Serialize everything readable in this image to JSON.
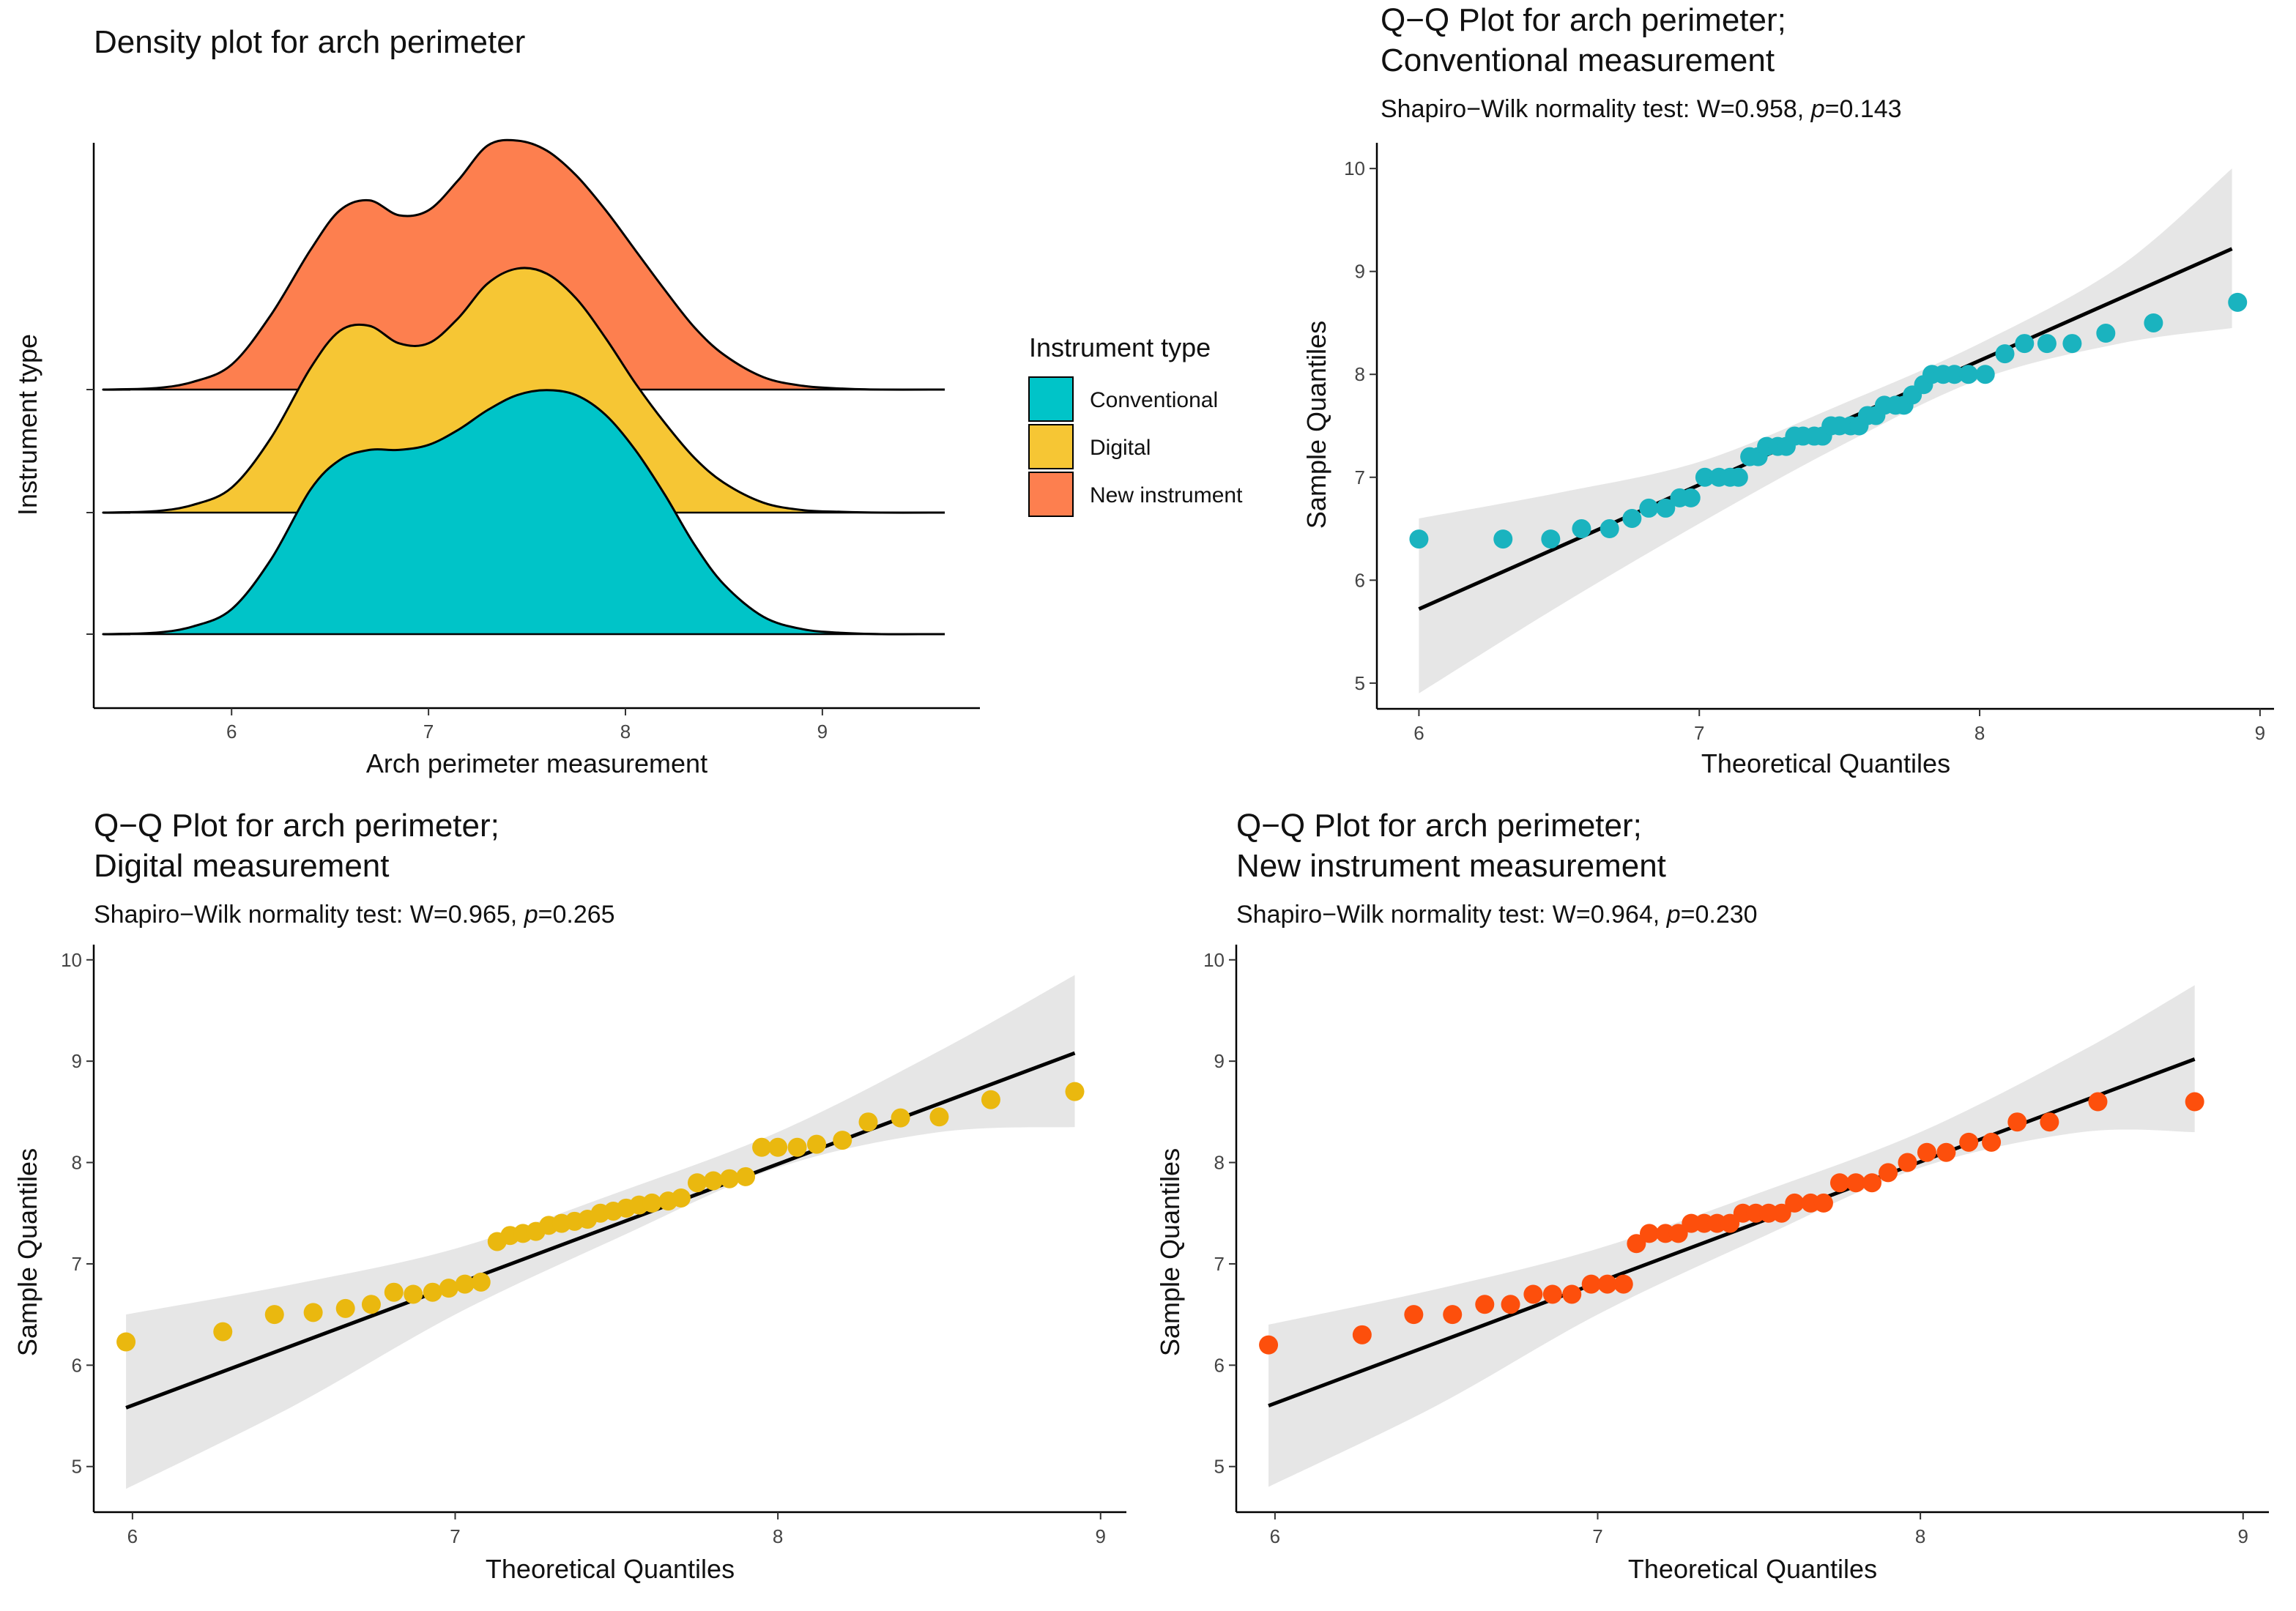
{
  "figure": {
    "legend": {
      "title": "Instrument type",
      "items": [
        {
          "label": "Conventional",
          "color": "#00c4c8"
        },
        {
          "label": "Digital",
          "color": "#f6c634"
        },
        {
          "label": "New instrument",
          "color": "#fd7f4f"
        }
      ]
    }
  },
  "chart_data": [
    {
      "type": "area",
      "subtype": "ridgeline-density",
      "title": "Density plot for arch perimeter",
      "xlabel": "Arch perimeter measurement",
      "ylabel": "Instrument type",
      "xlim": [
        5.3,
        9.8
      ],
      "xticks": [
        6,
        7,
        8,
        9
      ],
      "x": [
        5.35,
        5.6,
        5.8,
        6.0,
        6.2,
        6.4,
        6.55,
        6.7,
        6.85,
        7.0,
        7.15,
        7.3,
        7.45,
        7.6,
        7.75,
        7.9,
        8.05,
        8.2,
        8.35,
        8.5,
        8.7,
        8.9,
        9.1,
        9.3,
        9.55
      ],
      "series": [
        {
          "name": "Conventional",
          "color": "#00c4c8",
          "values": [
            0.0,
            0.005,
            0.03,
            0.1,
            0.3,
            0.58,
            0.7,
            0.74,
            0.74,
            0.76,
            0.82,
            0.9,
            0.96,
            0.98,
            0.96,
            0.88,
            0.74,
            0.56,
            0.36,
            0.2,
            0.07,
            0.02,
            0.005,
            0.0,
            0.0
          ]
        },
        {
          "name": "Digital",
          "color": "#f6c634",
          "values": [
            0.0,
            0.005,
            0.03,
            0.1,
            0.3,
            0.58,
            0.73,
            0.75,
            0.68,
            0.68,
            0.78,
            0.92,
            0.98,
            0.96,
            0.86,
            0.7,
            0.52,
            0.36,
            0.22,
            0.12,
            0.04,
            0.01,
            0.003,
            0.0,
            0.0
          ]
        },
        {
          "name": "New instrument",
          "color": "#fd7f4f",
          "values": [
            0.0,
            0.005,
            0.03,
            0.1,
            0.3,
            0.56,
            0.72,
            0.76,
            0.7,
            0.72,
            0.84,
            0.98,
            1.0,
            0.96,
            0.86,
            0.72,
            0.56,
            0.4,
            0.25,
            0.14,
            0.05,
            0.015,
            0.004,
            0.0,
            0.0
          ]
        }
      ]
    },
    {
      "type": "scatter",
      "title": "Q−Q Plot  for arch perimeter;",
      "title2": "Conventional measurement",
      "subtitle_prefix": "Shapiro−Wilk normality test: W=0.958, ",
      "subtitle_p": "p",
      "subtitle_suffix": "=0.143",
      "xlabel": "Theoretical Quantiles",
      "ylabel": "Sample Quantiles",
      "xlim": [
        5.85,
        9.05
      ],
      "ylim": [
        4.75,
        10.25
      ],
      "xticks": [
        6,
        7,
        8,
        9
      ],
      "yticks": [
        5,
        6,
        7,
        8,
        9,
        10
      ],
      "color": "#1ab3bf",
      "line": {
        "x": [
          6.0,
          8.9
        ],
        "y": [
          5.72,
          9.22
        ]
      },
      "band": {
        "x": [
          6.0,
          6.5,
          7.0,
          7.5,
          8.0,
          8.5,
          8.9
        ],
        "lower": [
          4.9,
          5.75,
          6.55,
          7.3,
          7.95,
          8.3,
          8.45
        ],
        "upper": [
          6.6,
          6.85,
          7.15,
          7.7,
          8.3,
          9.05,
          10.0
        ]
      },
      "points": {
        "x": [
          6.0,
          6.3,
          6.47,
          6.58,
          6.68,
          6.76,
          6.82,
          6.88,
          6.93,
          6.97,
          7.02,
          7.07,
          7.11,
          7.14,
          7.18,
          7.21,
          7.24,
          7.28,
          7.31,
          7.34,
          7.37,
          7.41,
          7.44,
          7.47,
          7.5,
          7.54,
          7.57,
          7.6,
          7.63,
          7.66,
          7.7,
          7.73,
          7.76,
          7.8,
          7.83,
          7.87,
          7.91,
          7.96,
          8.02,
          8.09,
          8.16,
          8.24,
          8.33,
          8.45,
          8.62,
          8.92
        ],
        "y": [
          6.4,
          6.4,
          6.4,
          6.5,
          6.5,
          6.6,
          6.7,
          6.7,
          6.8,
          6.8,
          7.0,
          7.0,
          7.0,
          7.0,
          7.2,
          7.2,
          7.3,
          7.3,
          7.3,
          7.4,
          7.4,
          7.4,
          7.4,
          7.5,
          7.5,
          7.5,
          7.5,
          7.6,
          7.6,
          7.7,
          7.7,
          7.7,
          7.8,
          7.9,
          8.0,
          8.0,
          8.0,
          8.0,
          8.0,
          8.2,
          8.3,
          8.3,
          8.3,
          8.4,
          8.5,
          8.7
        ]
      }
    },
    {
      "type": "scatter",
      "title": "Q−Q Plot  for arch perimeter;",
      "title2": "Digital measurement",
      "subtitle_prefix": "Shapiro−Wilk normality test: W=0.965, ",
      "subtitle_p": "p",
      "subtitle_suffix": "=0.265",
      "xlabel": "Theoretical Quantiles",
      "ylabel": "Sample Quantiles",
      "xlim": [
        5.88,
        9.08
      ],
      "ylim": [
        4.55,
        10.15
      ],
      "xticks": [
        6,
        7,
        8,
        9
      ],
      "yticks": [
        5,
        6,
        7,
        8,
        9,
        10
      ],
      "color": "#eab80f",
      "line": {
        "x": [
          5.98,
          8.92
        ],
        "y": [
          5.58,
          9.08
        ]
      },
      "band": {
        "x": [
          5.98,
          6.5,
          7.0,
          7.5,
          8.0,
          8.5,
          8.92
        ],
        "lower": [
          4.78,
          5.6,
          6.5,
          7.25,
          7.95,
          8.3,
          8.35
        ],
        "upper": [
          6.5,
          6.8,
          7.15,
          7.7,
          8.3,
          9.1,
          9.85
        ]
      },
      "points": {
        "x": [
          5.98,
          6.28,
          6.44,
          6.56,
          6.66,
          6.74,
          6.81,
          6.87,
          6.93,
          6.98,
          7.03,
          7.08,
          7.13,
          7.17,
          7.21,
          7.25,
          7.29,
          7.33,
          7.37,
          7.41,
          7.45,
          7.49,
          7.53,
          7.57,
          7.61,
          7.66,
          7.7,
          7.75,
          7.8,
          7.85,
          7.9,
          7.95,
          8.0,
          8.06,
          8.12,
          8.2,
          8.28,
          8.38,
          8.5,
          8.66,
          8.92
        ],
        "y": [
          6.23,
          6.33,
          6.5,
          6.52,
          6.56,
          6.6,
          6.72,
          6.7,
          6.72,
          6.76,
          6.8,
          6.82,
          7.22,
          7.28,
          7.3,
          7.32,
          7.38,
          7.4,
          7.42,
          7.44,
          7.5,
          7.52,
          7.55,
          7.58,
          7.6,
          7.62,
          7.65,
          7.8,
          7.82,
          7.84,
          7.86,
          8.15,
          8.15,
          8.15,
          8.18,
          8.22,
          8.4,
          8.44,
          8.45,
          8.62,
          8.7
        ]
      }
    },
    {
      "type": "scatter",
      "title": "Q−Q Plot  for arch perimeter;",
      "title2": "New instrument measurement",
      "subtitle_prefix": "Shapiro−Wilk normality test: W=0.964, ",
      "subtitle_p": "p",
      "subtitle_suffix": "=0.230",
      "xlabel": "Theoretical Quantiles",
      "ylabel": "Sample Quantiles",
      "xlim": [
        5.88,
        9.08
      ],
      "ylim": [
        4.55,
        10.15
      ],
      "xticks": [
        6,
        7,
        8,
        9
      ],
      "yticks": [
        5,
        6,
        7,
        8,
        9,
        10
      ],
      "color": "#fd4f0c",
      "line": {
        "x": [
          5.98,
          8.85
        ],
        "y": [
          5.6,
          9.02
        ]
      },
      "band": {
        "x": [
          5.98,
          6.5,
          7.0,
          7.5,
          8.0,
          8.5,
          8.85
        ],
        "lower": [
          4.8,
          5.6,
          6.5,
          7.25,
          7.95,
          8.3,
          8.3
        ],
        "upper": [
          6.4,
          6.75,
          7.15,
          7.7,
          8.3,
          9.1,
          9.75
        ]
      },
      "points": {
        "x": [
          5.98,
          6.27,
          6.43,
          6.55,
          6.65,
          6.73,
          6.8,
          6.86,
          6.92,
          6.98,
          7.03,
          7.08,
          7.12,
          7.16,
          7.21,
          7.25,
          7.29,
          7.33,
          7.37,
          7.41,
          7.45,
          7.49,
          7.53,
          7.57,
          7.61,
          7.66,
          7.7,
          7.75,
          7.8,
          7.85,
          7.9,
          7.96,
          8.02,
          8.08,
          8.15,
          8.22,
          8.3,
          8.4,
          8.55,
          8.85
        ],
        "y": [
          6.2,
          6.3,
          6.5,
          6.5,
          6.6,
          6.6,
          6.7,
          6.7,
          6.7,
          6.8,
          6.8,
          6.8,
          7.2,
          7.3,
          7.3,
          7.3,
          7.4,
          7.4,
          7.4,
          7.4,
          7.5,
          7.5,
          7.5,
          7.5,
          7.6,
          7.6,
          7.6,
          7.8,
          7.8,
          7.8,
          7.9,
          8.0,
          8.1,
          8.1,
          8.2,
          8.2,
          8.4,
          8.4,
          8.6,
          8.6
        ]
      }
    }
  ]
}
